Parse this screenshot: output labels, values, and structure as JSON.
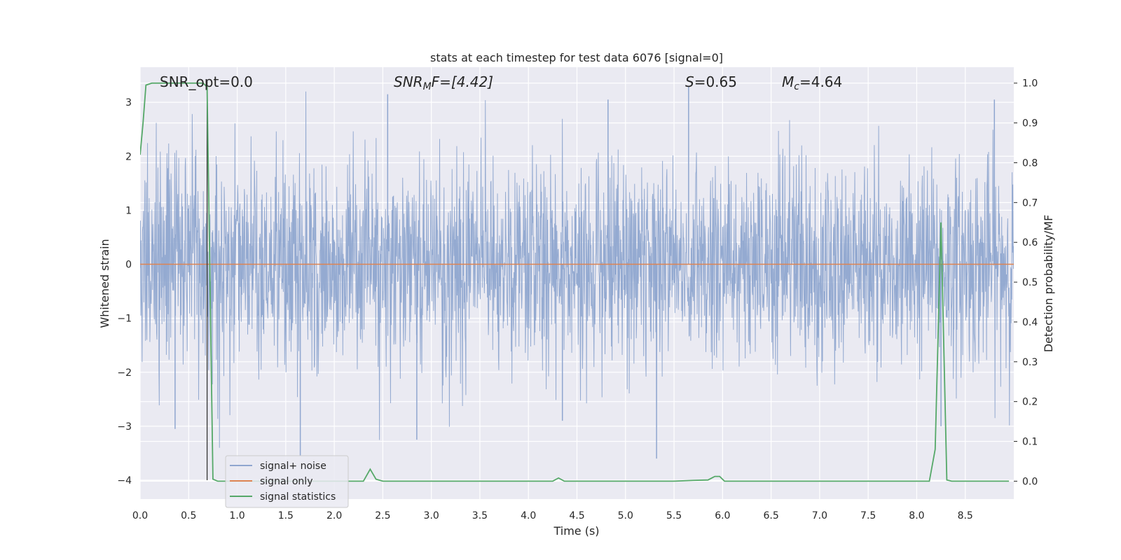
{
  "chart_data": {
    "type": "line",
    "title": "stats at each timestep for test data 6076 [signal=0]",
    "xlabel": "Time (s)",
    "ylabel": "Whitened strain",
    "y2label": "Detection probability/MF",
    "xlim": [
      0.0,
      9.0
    ],
    "ylim": [
      -4.35,
      3.65
    ],
    "y2lim": [
      -0.045,
      1.04
    ],
    "x_ticks": [
      "0.0",
      "0.5",
      "1.0",
      "1.5",
      "2.0",
      "2.5",
      "3.0",
      "3.5",
      "4.0",
      "4.5",
      "5.0",
      "5.5",
      "6.0",
      "6.5",
      "7.0",
      "7.5",
      "8.0",
      "8.5"
    ],
    "y_ticks": [
      "−4",
      "−3",
      "−2",
      "−1",
      "0",
      "1",
      "2",
      "3"
    ],
    "y2_ticks": [
      "0.0",
      "0.1",
      "0.2",
      "0.3",
      "0.4",
      "0.5",
      "0.6",
      "0.7",
      "0.8",
      "0.9",
      "1.0"
    ],
    "grid": true,
    "legend_position": "lower-left",
    "annotations": {
      "snr_opt": "SNR_opt=0.0",
      "snr_mf_label": "SNR",
      "snr_mf_sub": "M",
      "snr_mf_value": "F=[4.42]",
      "s_label": "S",
      "s_value": "=0.65",
      "mc_label": "M",
      "mc_sub": "c",
      "mc_value": "=4.64"
    },
    "vertical_marker_x": 0.69,
    "series": [
      {
        "name": "signal+ noise",
        "color": "#8fa6cf",
        "axis": "left",
        "description_values": "dense noise, approximately Gaussian with std ~1, spanning roughly -3.6 to 3.3",
        "peaks": [
          [
            0.36,
            -3.05
          ],
          [
            1.65,
            -3.55
          ],
          [
            2.85,
            -3.25
          ],
          [
            4.35,
            -2.9
          ],
          [
            5.32,
            -3.6
          ],
          [
            5.65,
            3.3
          ],
          [
            8.25,
            -3.0
          ],
          [
            8.8,
            3.05
          ],
          [
            4.82,
            3.05
          ],
          [
            2.55,
            3.15
          ]
        ]
      },
      {
        "name": "signal only",
        "color": "#dd8452",
        "axis": "left",
        "x": [
          0.0,
          9.0
        ],
        "y": [
          0.0,
          0.0
        ]
      },
      {
        "name": "signal statistics",
        "color": "#55a868",
        "axis": "right",
        "x": [
          0.0,
          0.03,
          0.06,
          0.12,
          0.25,
          0.5,
          0.65,
          0.69,
          0.75,
          0.8,
          1.0,
          1.5,
          2.0,
          2.3,
          2.37,
          2.43,
          2.5,
          3.0,
          3.5,
          4.0,
          4.25,
          4.31,
          4.37,
          4.5,
          5.0,
          5.5,
          5.7,
          5.85,
          5.92,
          5.97,
          6.02,
          6.5,
          7.0,
          7.5,
          8.0,
          8.13,
          8.19,
          8.25,
          8.31,
          8.36,
          8.5,
          8.95
        ],
        "y": [
          0.82,
          0.9,
          0.995,
          1.0,
          1.0,
          1.0,
          1.0,
          0.99,
          0.005,
          0.0,
          0.0,
          0.0,
          0.0,
          0.0,
          0.03,
          0.005,
          0.0,
          0.0,
          0.0,
          0.0,
          0.0,
          0.008,
          0.0,
          0.0,
          0.0,
          0.0,
          0.002,
          0.003,
          0.012,
          0.012,
          0.0,
          0.0,
          0.0,
          0.0,
          0.0,
          0.0,
          0.08,
          0.65,
          0.003,
          0.0,
          0.0,
          0.0
        ]
      }
    ]
  }
}
